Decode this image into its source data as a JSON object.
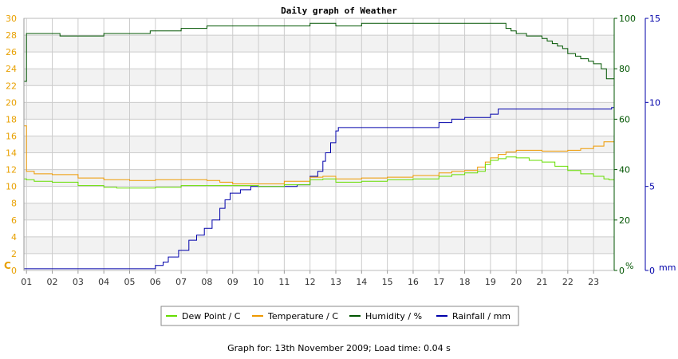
{
  "colors": {
    "dew_point": "#66dd00",
    "temperature": "#ee9900",
    "humidity": "#005500",
    "rainfall": "#0000aa",
    "left_axis": "#e8a000",
    "grid": "#cccccc",
    "band": "#f2f2f2"
  },
  "chart_data": {
    "type": "line",
    "title": "Daily graph of Weather",
    "x_ticks": [
      "01",
      "02",
      "03",
      "04",
      "05",
      "06",
      "07",
      "08",
      "09",
      "10",
      "11",
      "12",
      "13",
      "14",
      "15",
      "16",
      "17",
      "18",
      "19",
      "20",
      "21",
      "22",
      "23"
    ],
    "xlim": [
      0.9,
      23.8
    ],
    "axes": {
      "left": {
        "unit": "C",
        "ylim": [
          0,
          30
        ],
        "ticks": [
          0,
          2,
          4,
          6,
          8,
          10,
          12,
          14,
          16,
          18,
          20,
          22,
          24,
          26,
          28,
          30
        ]
      },
      "humidity": {
        "unit": "%",
        "ylim": [
          0,
          100
        ],
        "ticks": [
          0,
          20,
          40,
          60,
          80,
          100
        ]
      },
      "rainfall": {
        "unit": "mm",
        "ylim": [
          0,
          15
        ],
        "ticks": [
          0,
          5,
          10,
          15
        ]
      }
    },
    "grid": true,
    "legend_position": "bottom",
    "series": [
      {
        "name": "Dew Point / C",
        "key": "dew_point",
        "axis": "left",
        "x": [
          0.9,
          1.0,
          1.3,
          2.0,
          3.0,
          4.0,
          4.5,
          5.0,
          6.0,
          7.0,
          8.0,
          9.0,
          10.0,
          11.0,
          12.0,
          12.5,
          13.0,
          14.0,
          15.0,
          16.0,
          17.0,
          17.5,
          18.0,
          18.5,
          18.8,
          19.0,
          19.3,
          19.6,
          20.0,
          20.5,
          21.0,
          21.5,
          22.0,
          22.5,
          23.0,
          23.4,
          23.6,
          23.8
        ],
        "y": [
          10.9,
          10.8,
          10.6,
          10.5,
          10.1,
          9.9,
          9.8,
          9.8,
          9.9,
          10.1,
          10.1,
          10.1,
          10.0,
          10.2,
          10.8,
          10.9,
          10.5,
          10.6,
          10.8,
          10.9,
          11.2,
          11.4,
          11.6,
          11.8,
          12.6,
          13.1,
          13.3,
          13.5,
          13.4,
          13.1,
          12.9,
          12.4,
          11.9,
          11.5,
          11.2,
          10.9,
          10.8,
          10.7
        ]
      },
      {
        "name": "Temperature / C",
        "key": "temperature",
        "axis": "left",
        "x": [
          0.9,
          1.0,
          1.3,
          2.0,
          3.0,
          4.0,
          5.0,
          6.0,
          7.0,
          8.0,
          8.5,
          9.0,
          10.0,
          11.0,
          12.0,
          12.5,
          13.0,
          14.0,
          15.0,
          16.0,
          17.0,
          17.5,
          18.0,
          18.5,
          18.8,
          19.0,
          19.3,
          19.6,
          20.0,
          20.5,
          21.0,
          21.5,
          22.0,
          22.5,
          23.0,
          23.4,
          23.8
        ],
        "y": [
          17.2,
          11.8,
          11.5,
          11.4,
          11.0,
          10.8,
          10.7,
          10.8,
          10.8,
          10.7,
          10.5,
          10.3,
          10.3,
          10.6,
          11.1,
          11.2,
          10.9,
          11.0,
          11.1,
          11.3,
          11.6,
          11.8,
          11.9,
          12.3,
          12.9,
          13.4,
          13.8,
          14.1,
          14.3,
          14.3,
          14.2,
          14.2,
          14.3,
          14.5,
          14.8,
          15.3,
          15.5
        ]
      },
      {
        "name": "Humidity / %",
        "key": "humidity",
        "axis": "humidity",
        "x": [
          0.9,
          1.0,
          1.2,
          1.5,
          2.0,
          2.3,
          3.0,
          4.0,
          5.0,
          5.8,
          6.0,
          7.0,
          7.8,
          8.0,
          9.0,
          10.0,
          11.0,
          12.0,
          13.0,
          14.0,
          15.0,
          16.0,
          17.0,
          18.0,
          19.0,
          19.4,
          19.6,
          19.8,
          20.0,
          20.4,
          20.8,
          21.0,
          21.2,
          21.4,
          21.6,
          21.8,
          22.0,
          22.3,
          22.5,
          22.8,
          23.0,
          23.3,
          23.5,
          23.8
        ],
        "y": [
          75,
          94,
          94,
          94,
          94,
          93,
          93,
          94,
          94,
          95,
          95,
          96,
          96,
          97,
          97,
          97,
          97,
          98,
          97,
          98,
          98,
          98,
          98,
          98,
          98,
          98,
          96,
          95,
          94,
          93,
          93,
          92,
          91,
          90,
          89,
          88,
          86,
          85,
          84,
          83,
          82,
          80,
          76,
          73
        ]
      },
      {
        "name": "Rainfall / mm",
        "key": "rainfall",
        "axis": "rainfall",
        "x": [
          0.9,
          2.0,
          4.0,
          5.0,
          5.9,
          6.0,
          6.3,
          6.5,
          6.9,
          7.3,
          7.6,
          7.9,
          8.2,
          8.5,
          8.7,
          8.9,
          9.3,
          9.7,
          10.0,
          10.5,
          11.0,
          11.5,
          12.0,
          12.3,
          12.5,
          12.6,
          12.8,
          13.0,
          13.1,
          14.0,
          15.0,
          16.0,
          17.0,
          17.5,
          18.0,
          19.0,
          19.3,
          20.0,
          21.0,
          22.0,
          23.0,
          23.7,
          23.8
        ],
        "y": [
          0.1,
          0.1,
          0.1,
          0.1,
          0.1,
          0.3,
          0.5,
          0.8,
          1.2,
          1.8,
          2.1,
          2.5,
          3.0,
          3.7,
          4.2,
          4.6,
          4.8,
          5.0,
          5.0,
          5.0,
          5.0,
          5.1,
          5.6,
          5.9,
          6.5,
          7.0,
          7.6,
          8.3,
          8.5,
          8.5,
          8.5,
          8.5,
          8.8,
          9.0,
          9.1,
          9.3,
          9.6,
          9.6,
          9.6,
          9.6,
          9.6,
          9.7,
          10.0
        ]
      }
    ]
  },
  "footer": {
    "text": "Graph for: 13th November 2009; Load time: 0.04 s"
  }
}
